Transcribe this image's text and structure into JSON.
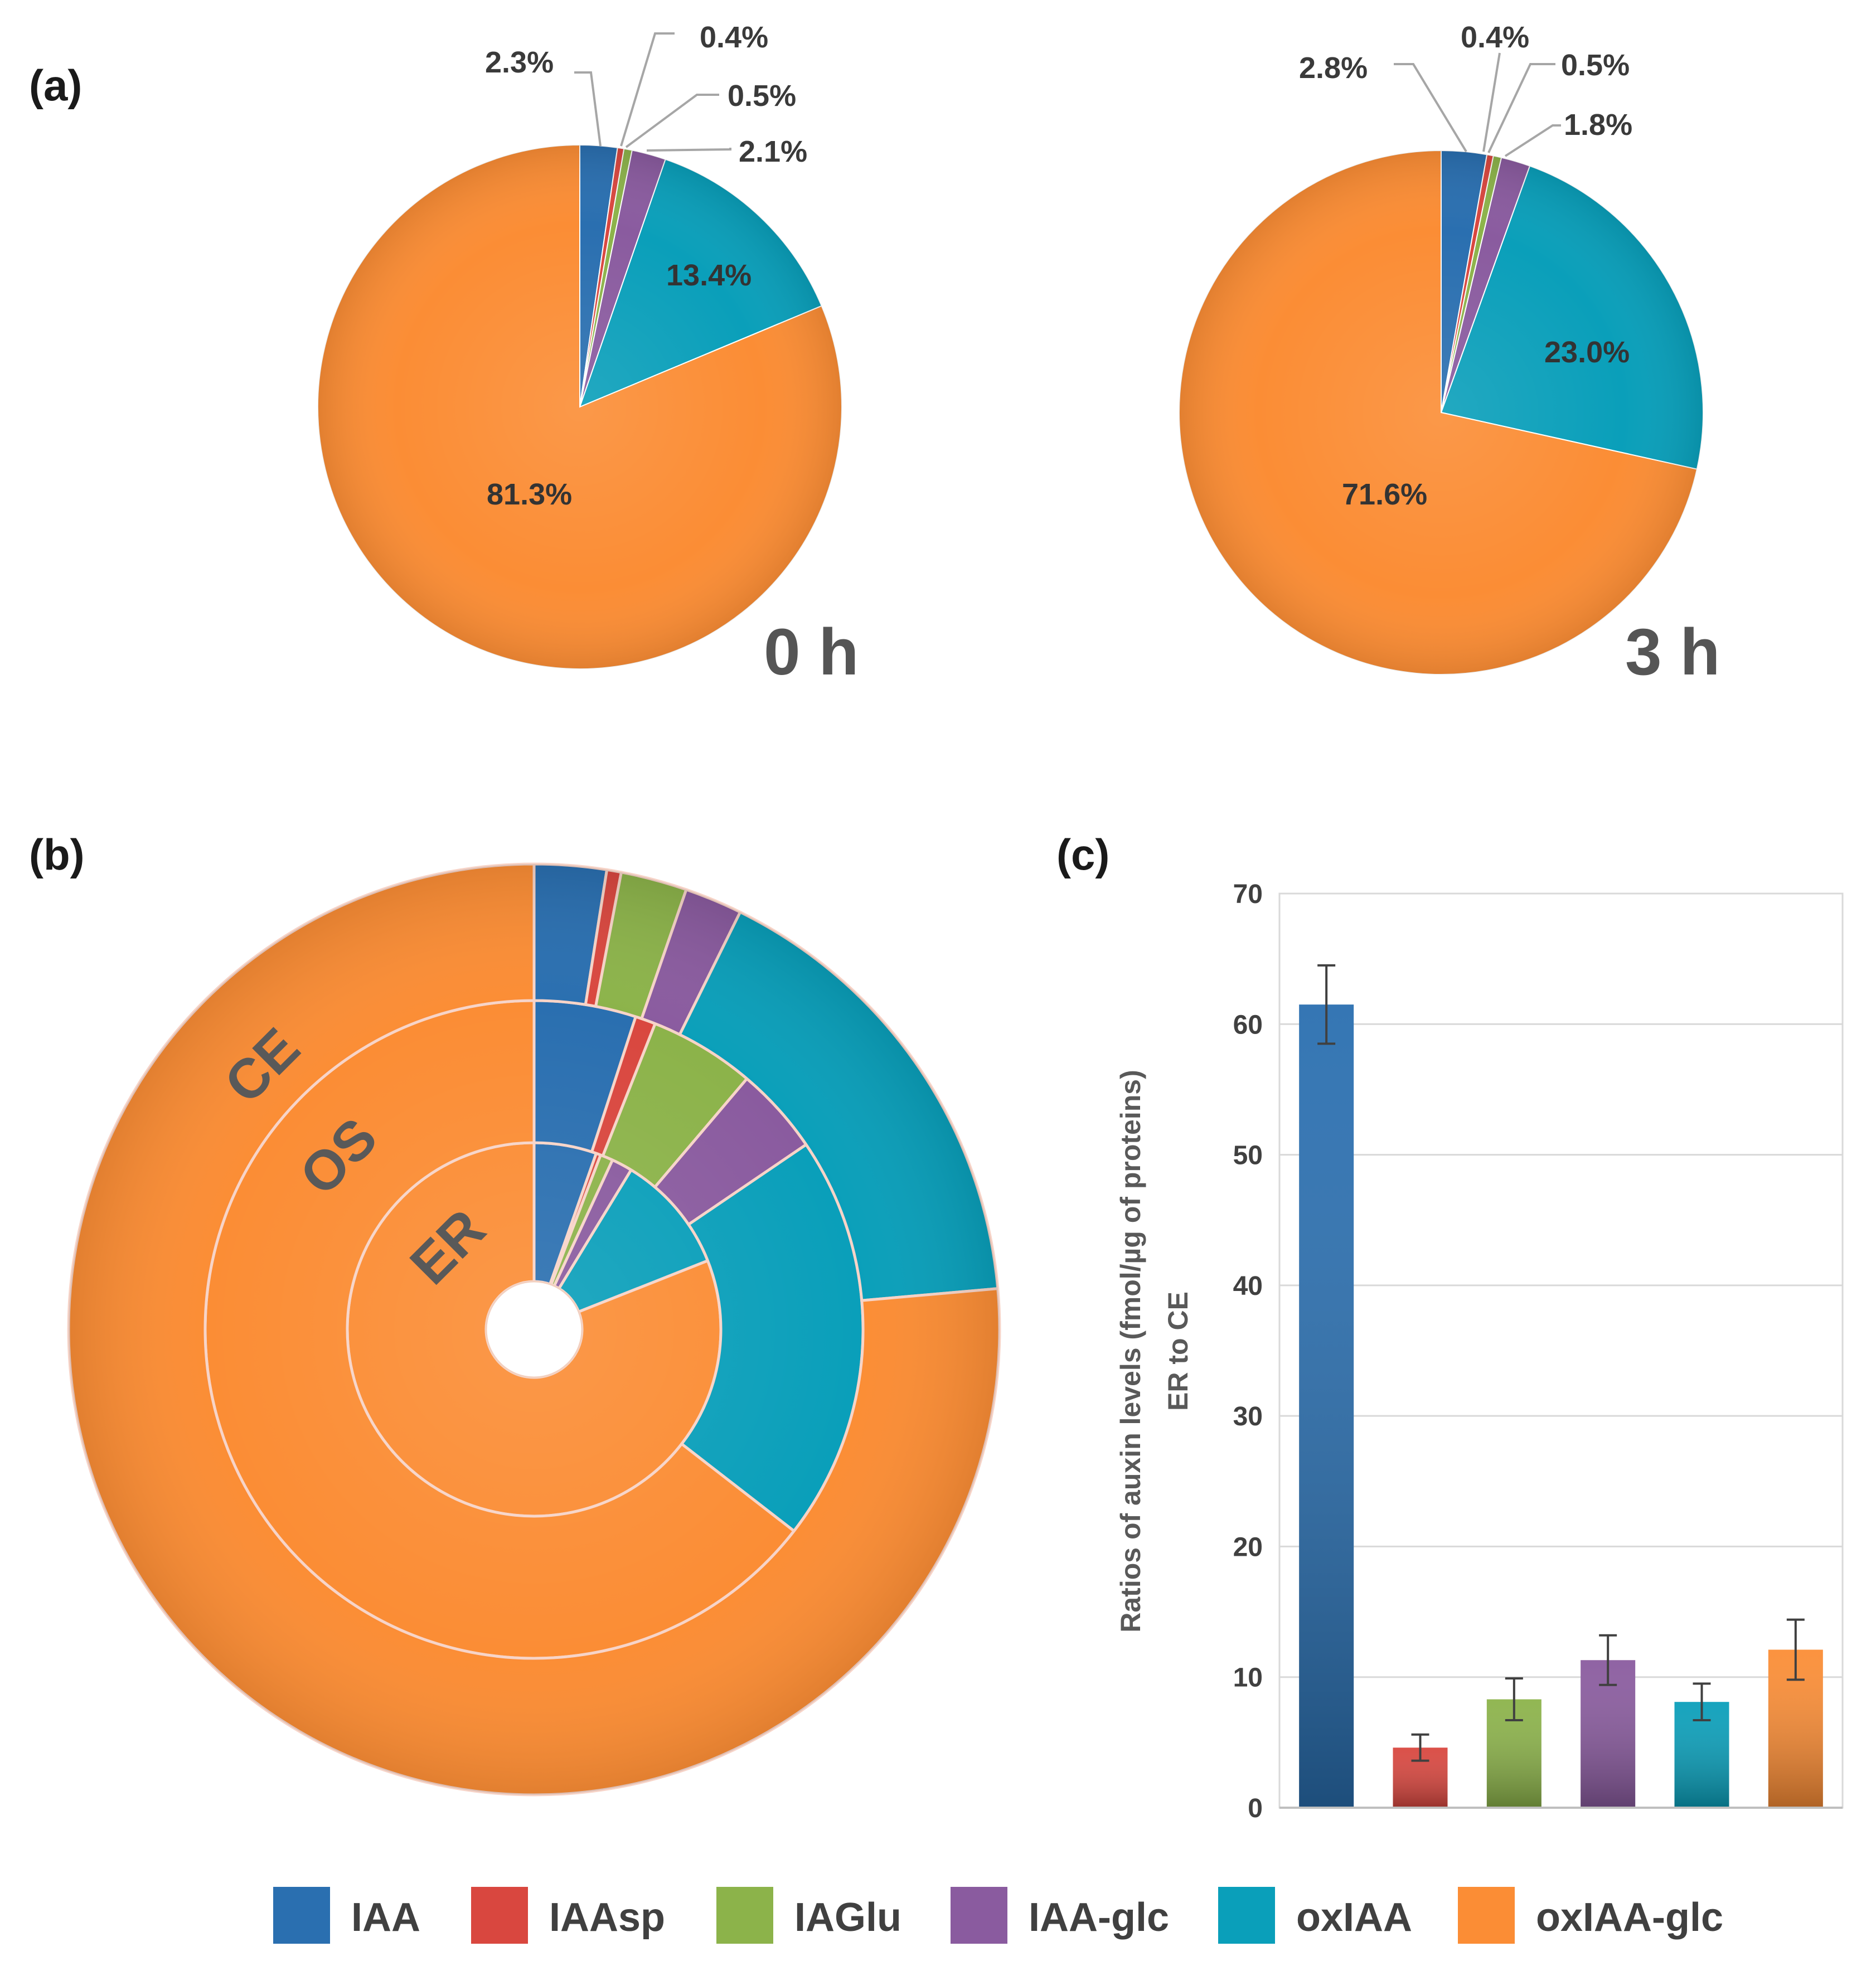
{
  "palette": {
    "IAA": "#2a6fb0",
    "IAAsp": "#d9473f",
    "IAGlu": "#8cb34a",
    "IAA-glc": "#8a5b9f",
    "oxIAA": "#0a9fba",
    "oxIAA-glc": "#fb8d35"
  },
  "panels": {
    "a": "(a)",
    "b": "(b)",
    "c": "(c)"
  },
  "legend": [
    "IAA",
    "IAAsp",
    "IAGlu",
    "IAA-glc",
    "oxIAA",
    "oxIAA-glc"
  ],
  "chart_data": [
    {
      "id": "pie_0h",
      "type": "pie",
      "title": "0 h",
      "categories": [
        "IAA",
        "IAAsp",
        "IAGlu",
        "IAA-glc",
        "oxIAA",
        "oxIAA-glc"
      ],
      "values": [
        2.3,
        0.4,
        0.5,
        2.1,
        13.4,
        81.3
      ],
      "labels": [
        "2.3%",
        "0.4%",
        "0.5%",
        "2.1%",
        "13.4%",
        "81.3%"
      ]
    },
    {
      "id": "pie_3h",
      "type": "pie",
      "title": "3 h",
      "categories": [
        "IAA",
        "IAAsp",
        "IAGlu",
        "IAA-glc",
        "oxIAA",
        "oxIAA-glc"
      ],
      "values": [
        2.8,
        0.4,
        0.5,
        1.8,
        23.0,
        71.6
      ],
      "labels": [
        "2.8%",
        "0.4%",
        "0.5%",
        "1.8%",
        "23.0%",
        "71.6%"
      ]
    },
    {
      "id": "donut_tissues",
      "type": "pie",
      "subtype": "multi-ring donut",
      "categories": [
        "IAA",
        "IAAsp",
        "IAGlu",
        "IAA-glc",
        "oxIAA",
        "oxIAA-glc"
      ],
      "rings": [
        {
          "name": "ER",
          "values": [
            5.4,
            0.4,
            1.1,
            1.8,
            10.3,
            81.0
          ]
        },
        {
          "name": "OS",
          "values": [
            5.0,
            1.0,
            5.2,
            4.3,
            20.0,
            64.5
          ]
        },
        {
          "name": "CE",
          "values": [
            2.5,
            0.5,
            2.3,
            2.0,
            16.3,
            76.4
          ]
        }
      ]
    },
    {
      "id": "bar_ratio",
      "type": "bar",
      "categories": [
        "IAA",
        "IAAsp",
        "IAGlu",
        "IAA-glc",
        "oxIAA",
        "oxIAA-glc"
      ],
      "values": [
        61.5,
        4.6,
        8.3,
        11.3,
        8.1,
        12.1
      ],
      "errors": [
        3.0,
        1.0,
        1.6,
        1.9,
        1.4,
        2.3
      ],
      "ylabel": "Ratios of auxin levels (fmol/µg of proteins)",
      "ylabel2": "ER to CE",
      "xlabel": "",
      "ylim": [
        0,
        70
      ],
      "yticks": [
        "0",
        "10",
        "20",
        "30",
        "40",
        "50",
        "60",
        "70"
      ],
      "grid": true
    }
  ]
}
